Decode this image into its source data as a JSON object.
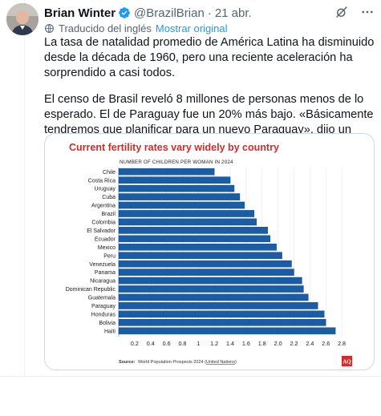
{
  "tweet": {
    "author_name": "Brian Winter",
    "handle": "@BrazilBrian",
    "separator": "·",
    "date": "21 abr.",
    "translated_label": "Traducido del inglés",
    "show_original_label": "Mostrar original",
    "paragraphs": [
      "La tasa de natalidad promedio de América Latina ha disminuido desde la década de 1960, pero una reciente aceleración ha sorprendido a casi todos.",
      "El censo de Brasil reveló 8 millones de personas menos de lo esperado. El de Paraguay fue un 20% más bajo. «Básicamente tendremos que planificar para un nuevo Paraguay», dijo un ministro allí."
    ],
    "icons": {
      "verified": "verified-badge-icon",
      "grok": "grok-icon",
      "more": "more-icon",
      "translate": "translate-icon"
    },
    "colors": {
      "verified": "#1d9bf0",
      "link": "#1d9bf0",
      "muted": "#536471"
    }
  },
  "chart_data": {
    "type": "bar",
    "orientation": "horizontal",
    "title": "Current fertility rates vary widely by country",
    "subtitle": "NUMBER OF CHILDREN PER WOMAN IN 2024",
    "categories": [
      "Chile",
      "Costa Rica",
      "Uruguay",
      "Cuba",
      "Argentina",
      "Brazil",
      "Colombia",
      "El Salvador",
      "Ecuador",
      "Mexico",
      "Peru",
      "Venezuela",
      "Panama",
      "Nicaragua",
      "Dominican Republic",
      "Guatemala",
      "Paraguay",
      "Honduras",
      "Bolivia",
      "Haiti"
    ],
    "values": [
      1.2,
      1.4,
      1.45,
      1.52,
      1.58,
      1.7,
      1.73,
      1.87,
      1.9,
      1.98,
      2.05,
      2.17,
      2.2,
      2.3,
      2.32,
      2.38,
      2.5,
      2.58,
      2.6,
      2.72
    ],
    "xlim": [
      0,
      2.9
    ],
    "xticks": [
      0.2,
      0.4,
      0.6,
      0.8,
      1.0,
      1.2,
      1.4,
      1.6,
      1.8,
      2.0,
      2.2,
      2.4,
      2.6,
      2.8
    ],
    "xtick_labels": [
      "0.2",
      "0.4",
      "0.6",
      "0.8",
      "1",
      "1.2",
      "1.4",
      "1.6",
      "1.8",
      "2.0",
      "2.2",
      "2.4",
      "2.6",
      "2.8"
    ],
    "source_label": "Source:",
    "source_text": "World Population Prospects 2024 (",
    "source_link": "United Nations",
    "source_close": ")",
    "logo_text": "AQ",
    "grid": true,
    "colors": {
      "bar": "#1a5da6",
      "bar_edge": "#0d3f7a",
      "title": "#d42a2a",
      "grid": "#e3e6ea",
      "logo": "#d42a2a"
    }
  }
}
